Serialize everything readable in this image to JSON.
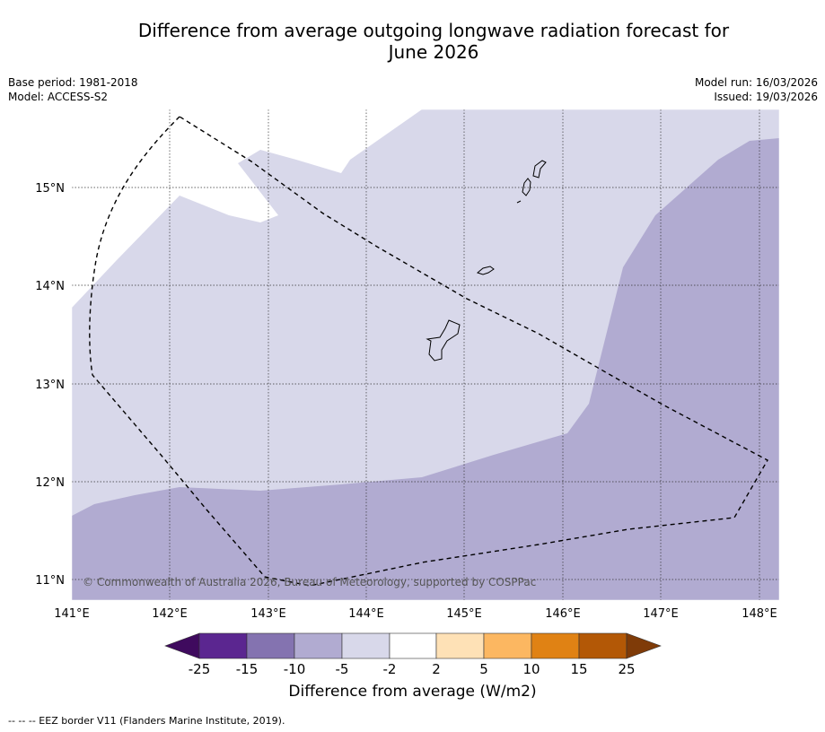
{
  "title_line1": "Difference from average outgoing longwave radiation forecast for",
  "title_line2": "June 2026",
  "meta_left": {
    "base_period": "Base period: 1981-2018",
    "model": "Model: ACCESS-S2"
  },
  "meta_right": {
    "model_run": "Model run: 16/03/2026",
    "issued": "Issued: 19/03/2026"
  },
  "lat_labels": [
    "15°N",
    "14°N",
    "13°N",
    "12°N",
    "11°N"
  ],
  "lon_labels": [
    "141°E",
    "142°E",
    "143°E",
    "144°E",
    "145°E",
    "146°E",
    "147°E",
    "148°E"
  ],
  "copyright": "© Commonwealth of Australia 2026, Bureau of Meteorology, supported by COSPPac",
  "colorbar": {
    "title": "Difference from average (W/m2)",
    "ticks": [
      "-25",
      "-15",
      "-10",
      "-5",
      "-2",
      "2",
      "5",
      "10",
      "15",
      "25"
    ],
    "colors": {
      "below_min": "#3f0a5e",
      "c1": "#5b2690",
      "c2": "#8473b0",
      "c3": "#b1abd1",
      "c4": "#d8d8ea",
      "c5": "#ffffff",
      "c6": "#fee1b6",
      "c7": "#fcb761",
      "c8": "#e08214",
      "c9": "#b35806",
      "above_max": "#7f3b08"
    }
  },
  "footnote": "--  --  -- EEZ border V11 (Flanders Marine Institute, 2019)."
}
